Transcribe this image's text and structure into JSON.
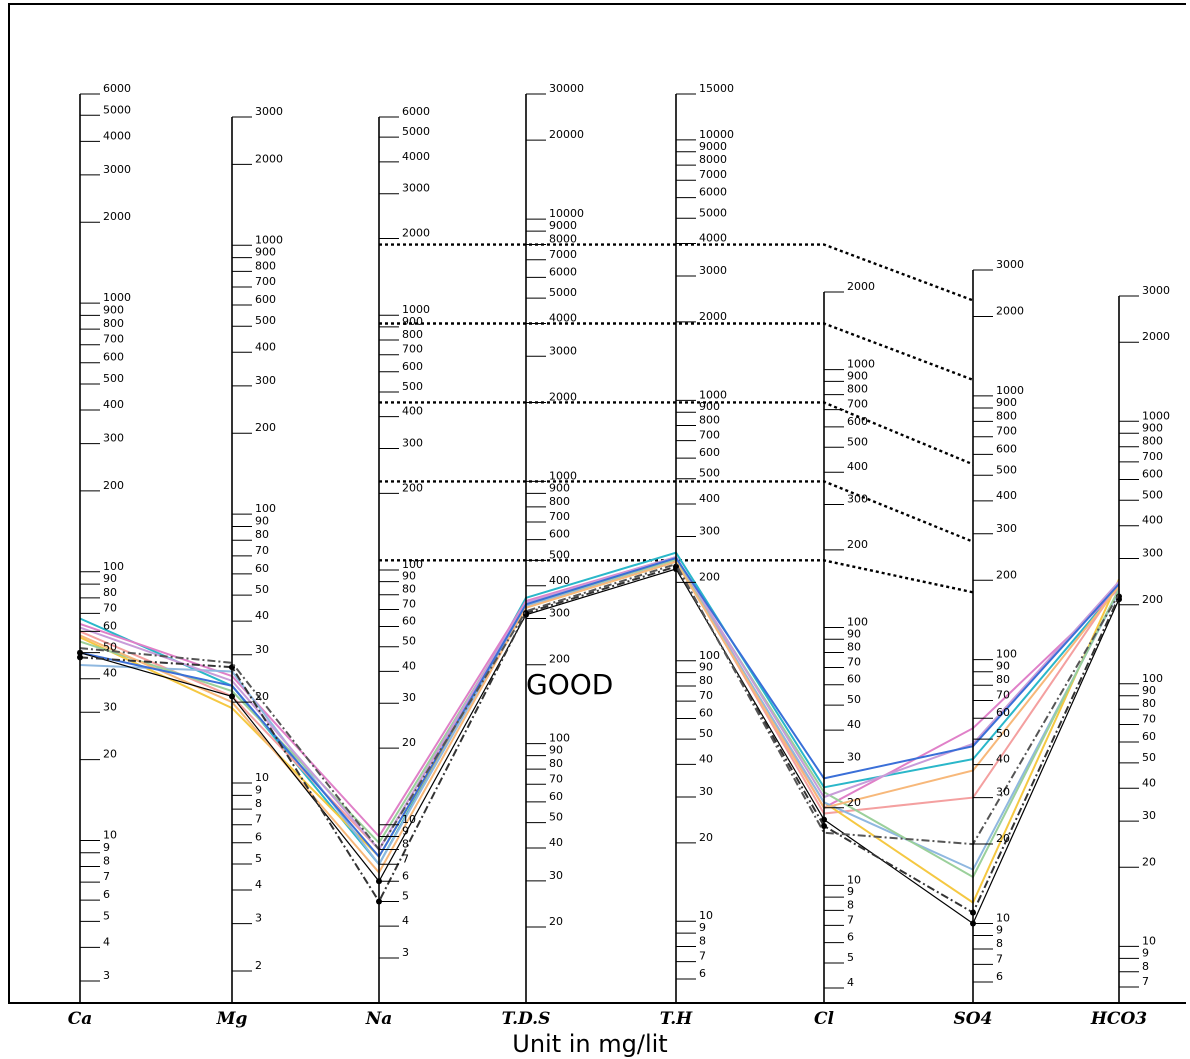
{
  "chart_data": {
    "type": "line",
    "subtitle": "Unit in mg/lit",
    "zone_label": "GOOD",
    "axes": [
      {
        "name": "Ca",
        "ticks": [
          3,
          4,
          5,
          6,
          7,
          8,
          9,
          10,
          20,
          30,
          40,
          50,
          60,
          70,
          80,
          90,
          100,
          200,
          300,
          400,
          500,
          600,
          700,
          800,
          900,
          1000,
          2000,
          3000,
          4000,
          5000,
          6000
        ]
      },
      {
        "name": "Mg",
        "ticks": [
          2,
          3,
          4,
          5,
          6,
          7,
          8,
          9,
          10,
          20,
          30,
          40,
          50,
          60,
          70,
          80,
          90,
          100,
          200,
          300,
          400,
          500,
          600,
          700,
          800,
          900,
          1000,
          2000,
          3000
        ]
      },
      {
        "name": "Na",
        "ticks": [
          3,
          4,
          5,
          6,
          7,
          8,
          9,
          10,
          20,
          30,
          40,
          50,
          60,
          70,
          80,
          90,
          100,
          200,
          300,
          400,
          500,
          600,
          700,
          800,
          900,
          1000,
          2000,
          3000,
          4000,
          5000,
          6000
        ]
      },
      {
        "name": "T.D.S",
        "ticks": [
          20,
          30,
          40,
          50,
          60,
          70,
          80,
          90,
          100,
          200,
          300,
          400,
          500,
          600,
          700,
          800,
          900,
          1000,
          2000,
          3000,
          4000,
          5000,
          6000,
          7000,
          8000,
          9000,
          10000,
          20000,
          30000
        ]
      },
      {
        "name": "T.H",
        "ticks": [
          6,
          7,
          8,
          9,
          10,
          20,
          30,
          40,
          50,
          60,
          70,
          80,
          90,
          100,
          200,
          300,
          400,
          500,
          600,
          700,
          800,
          900,
          1000,
          2000,
          3000,
          4000,
          5000,
          6000,
          7000,
          8000,
          9000,
          10000,
          15000
        ]
      },
      {
        "name": "Cl",
        "ticks": [
          4,
          5,
          6,
          7,
          8,
          9,
          10,
          20,
          30,
          40,
          50,
          60,
          70,
          80,
          90,
          100,
          200,
          300,
          400,
          500,
          600,
          700,
          800,
          900,
          1000,
          2000
        ]
      },
      {
        "name": "SO4",
        "ticks": [
          6,
          7,
          8,
          9,
          10,
          20,
          30,
          40,
          50,
          60,
          70,
          80,
          90,
          100,
          200,
          300,
          400,
          500,
          600,
          700,
          800,
          900,
          1000,
          2000,
          3000
        ]
      },
      {
        "name": "HCO3",
        "ticks": [
          7,
          8,
          9,
          10,
          20,
          30,
          40,
          50,
          60,
          70,
          80,
          90,
          100,
          200,
          300,
          400,
          500,
          600,
          700,
          800,
          900,
          1000,
          2000,
          3000
        ]
      }
    ],
    "quality_boundaries": [
      {
        "Na": 100,
        "TDS": 500,
        "TH": 250,
        "Cl": 250,
        "SO4": 180
      },
      {
        "Na": 200,
        "TDS": 1000,
        "TH": 500,
        "Cl": 500,
        "SO4": 280
      },
      {
        "Na": 500,
        "TDS": 2000,
        "TH": 1000,
        "Cl": 1000,
        "SO4": 550
      },
      {
        "Na": 900,
        "TDS": 4000,
        "TH": 2000,
        "Cl": 2000,
        "SO4": 1150
      },
      {
        "Na": 1800,
        "TDS": 8000,
        "TH": 4000,
        "Cl": 4000,
        "SO4": 2300
      }
    ],
    "series": [
      {
        "color": "#2ab7c9",
        "values": [
          67,
          23,
          7,
          360,
          260,
          24,
          42,
          235
        ]
      },
      {
        "color": "#e080c8",
        "values": [
          64,
          25,
          9,
          350,
          250,
          20,
          55,
          230
        ]
      },
      {
        "color": "#f4a0a0",
        "values": [
          60,
          21,
          8,
          340,
          245,
          19,
          30,
          240
        ]
      },
      {
        "color": "#f5c842",
        "values": [
          57,
          19,
          7.5,
          330,
          240,
          21,
          12,
          250
        ]
      },
      {
        "color": "#8fb8e0",
        "values": [
          45,
          26,
          7,
          335,
          240,
          21,
          16,
          225
        ]
      },
      {
        "color": "#9bd09b",
        "values": [
          55,
          22,
          8.5,
          340,
          245,
          23,
          15,
          230
        ]
      },
      {
        "color": "#c89cd9",
        "values": [
          62,
          24,
          8,
          345,
          250,
          22,
          48,
          245
        ]
      },
      {
        "color": "#f7b87a",
        "values": [
          58,
          20,
          6.5,
          330,
          240,
          20,
          38,
          235
        ]
      },
      {
        "color": "#3a6fd8",
        "values": [
          50,
          23,
          7.5,
          340,
          248,
          26,
          47,
          240
        ]
      },
      {
        "color": "#000000",
        "values": [
          50,
          21,
          6,
          310,
          225,
          18,
          10,
          210
        ]
      },
      {
        "color": "#333333",
        "values": [
          48,
          27,
          5,
          315,
          230,
          17,
          11,
          215
        ]
      },
      {
        "color": "#555555",
        "values": [
          52,
          28,
          8,
          320,
          235,
          16,
          20,
          220
        ]
      }
    ]
  }
}
